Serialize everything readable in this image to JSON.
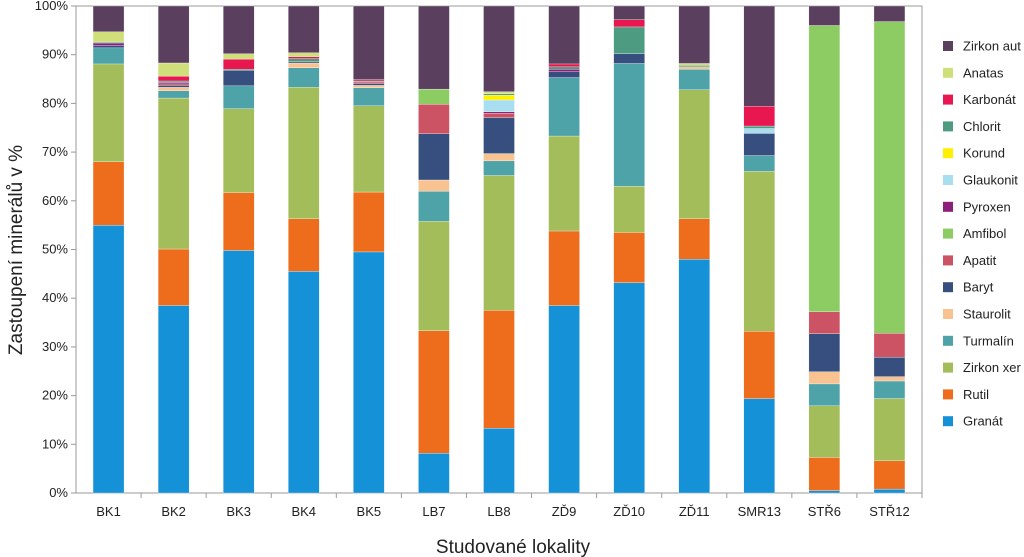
{
  "chart_data": {
    "type": "bar",
    "stacked": true,
    "title": "",
    "xlabel": "Studované lokality",
    "ylabel": "Zastoupení minerálů v %",
    "ylim": [
      0,
      100
    ],
    "yticks": [
      "0%",
      "10%",
      "20%",
      "30%",
      "40%",
      "50%",
      "60%",
      "70%",
      "80%",
      "90%",
      "100%"
    ],
    "grid": false,
    "legend_position": "right",
    "categories": [
      "BK1",
      "BK2",
      "BK3",
      "BK4",
      "BK5",
      "LB7",
      "LB8",
      "ZĎ9",
      "ZĎ10",
      "ZĎ11",
      "SMR13",
      "STŘ6",
      "STŘ12"
    ],
    "series": [
      {
        "name": "Granát",
        "color": "#1591d7",
        "values": [
          55,
          38.5,
          49.8,
          45.5,
          49.5,
          8.2,
          13.3,
          38.5,
          43.2,
          48,
          19.2,
          0.5,
          0.8
        ]
      },
      {
        "name": "Rutil",
        "color": "#ee6d1c",
        "values": [
          13,
          11.6,
          11.9,
          10.8,
          12.3,
          25.2,
          24.2,
          15.3,
          10.3,
          8.3,
          13.7,
          6.8,
          5.8
        ]
      },
      {
        "name": "Zirkon xenomorfní",
        "color": "#a3bd5a",
        "values": [
          20.1,
          31,
          17.2,
          27,
          17.7,
          22.5,
          27.7,
          19.5,
          9.5,
          26.5,
          32.5,
          10.6,
          12.8
        ]
      },
      {
        "name": "Turmalín",
        "color": "#4ea3a9",
        "values": [
          3.3,
          1.5,
          4.7,
          4,
          3.7,
          6.2,
          3,
          12,
          25.2,
          4.2,
          3.2,
          4.5,
          3.6
        ]
      },
      {
        "name": "Staurolit",
        "color": "#f8c291",
        "values": [
          0,
          0.7,
          0,
          1,
          0.5,
          2.3,
          1.5,
          0,
          0,
          0.5,
          0,
          2.5,
          0.9
        ]
      },
      {
        "name": "Baryt",
        "color": "#374f7f",
        "values": [
          0.5,
          0.4,
          3.2,
          0.3,
          0.4,
          9.5,
          7.4,
          1.2,
          2,
          0,
          4.5,
          7.8,
          4
        ]
      },
      {
        "name": "Apatit",
        "color": "#cb5363",
        "values": [
          0,
          0.3,
          0,
          0,
          0.3,
          6.1,
          0.9,
          0,
          0,
          0,
          0,
          4.5,
          4.9
        ]
      },
      {
        "name": "Amfibol",
        "color": "#8ccc63",
        "values": [
          0,
          0,
          0,
          0,
          0,
          3.1,
          0,
          0,
          0,
          0,
          0,
          58.8,
          64
        ]
      },
      {
        "name": "Pyroxen",
        "color": "#8b1f7a",
        "values": [
          0.5,
          0.3,
          0,
          0,
          0,
          0,
          0.3,
          0.5,
          0,
          0,
          0,
          0,
          0
        ]
      },
      {
        "name": "Glaukonit",
        "color": "#a8def0",
        "values": [
          0,
          0,
          0,
          0,
          0,
          0,
          2.4,
          0,
          0,
          0,
          1,
          0,
          0
        ]
      },
      {
        "name": "Korund",
        "color": "#fff000",
        "values": [
          0,
          0,
          0,
          0,
          0,
          0,
          1,
          0,
          0,
          0,
          0,
          0,
          0
        ]
      },
      {
        "name": "Chlorit",
        "color": "#4d9c82",
        "values": [
          0.2,
          0.3,
          0.2,
          0.6,
          0.2,
          0,
          0.3,
          0.5,
          5.5,
          0.3,
          0.5,
          0,
          0
        ]
      },
      {
        "name": "Karbonát",
        "color": "#e8174f",
        "values": [
          0,
          1,
          2.1,
          0.4,
          0.3,
          0,
          0,
          0.6,
          1.5,
          0,
          4,
          0,
          0
        ]
      },
      {
        "name": "Anatas",
        "color": "#cfe07a",
        "values": [
          2.1,
          2.7,
          1.1,
          0.8,
          0,
          0,
          0.4,
          0,
          0,
          0.4,
          0,
          0,
          0
        ]
      },
      {
        "name": "Zirkon automorfní",
        "color": "#5a3f5e",
        "values": [
          5.3,
          11.7,
          9.8,
          9.6,
          15.1,
          17.1,
          17.6,
          11.9,
          2.8,
          11.8,
          20.4,
          4,
          3.2
        ]
      }
    ],
    "legend_labels": [
      "Zirkon aut",
      "Anatas",
      "Karbonát",
      "Chlorit",
      "Korund",
      "Glaukonit",
      "Pyroxen",
      "Amfibol",
      "Apatit",
      "Baryt",
      "Staurolit",
      "Turmalín",
      "Zirkon xer",
      "Rutil",
      "Granát"
    ]
  }
}
